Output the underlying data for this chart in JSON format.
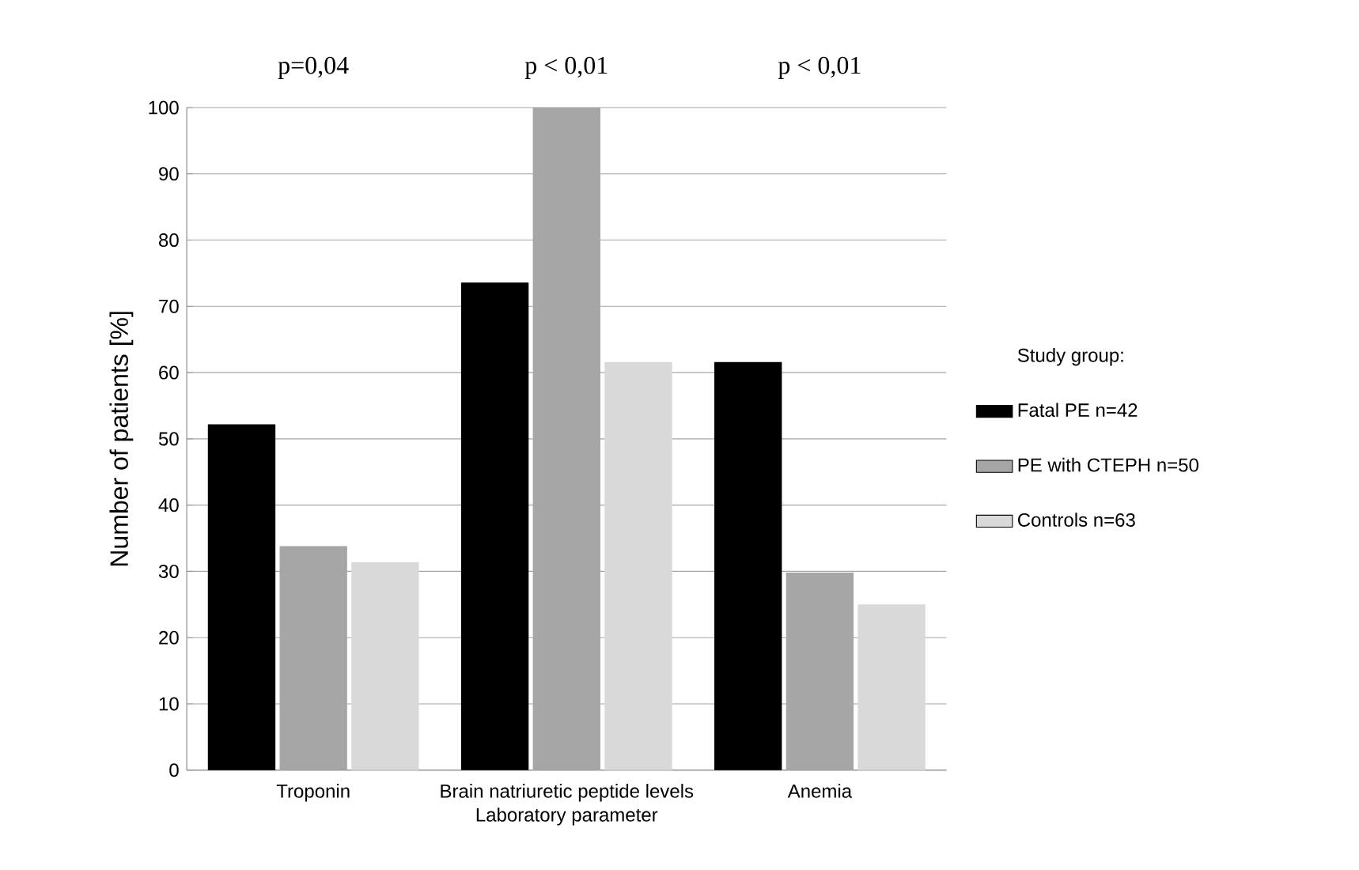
{
  "chart_data": {
    "type": "bar",
    "xlabel": "Laboratory parameter",
    "ylabel": "Number of patients [%]",
    "legend_title": "Study group:",
    "categories": [
      "Troponin",
      "Brain natriuretic peptide levels",
      "Anemia"
    ],
    "series": [
      {
        "name": "Fatal PE n=42",
        "color": "#000000",
        "values": [
          52.2,
          73.6,
          61.6
        ]
      },
      {
        "name": "PE with CTEPH n=50",
        "color": "#a6a6a6",
        "values": [
          33.8,
          100,
          29.8
        ]
      },
      {
        "name": "Controls n=63",
        "color": "#d9d9d9",
        "values": [
          31.4,
          61.6,
          25.0
        ]
      }
    ],
    "ylim": [
      0,
      100
    ],
    "yticks": [
      0,
      10,
      20,
      30,
      40,
      50,
      60,
      70,
      80,
      90,
      100
    ],
    "grid": "y",
    "legend": "right",
    "annotations": [
      "p=0,04",
      "p < 0,01",
      "p < 0,01"
    ]
  }
}
